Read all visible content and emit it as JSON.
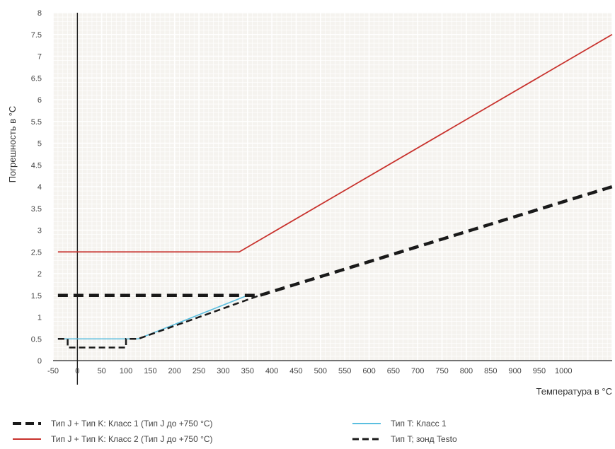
{
  "chart_data": {
    "type": "line",
    "xlabel": "Температура в °C",
    "ylabel": "Погрешность в °C",
    "xlim": [
      -50,
      1100
    ],
    "ylim": [
      0,
      8
    ],
    "x_ticks": [
      -50,
      0,
      50,
      100,
      150,
      200,
      250,
      300,
      350,
      400,
      450,
      500,
      550,
      600,
      650,
      700,
      750,
      800,
      850,
      900,
      950,
      1000
    ],
    "x_tick_labels": [
      "-50",
      "0",
      "50",
      "100",
      "150",
      "200",
      "250",
      "300",
      "350",
      "400",
      "450",
      "500",
      "550",
      "600",
      "650",
      "700",
      "750",
      "800",
      "850",
      "900",
      "950",
      "1000"
    ],
    "y_ticks": [
      0,
      0.5,
      1,
      1.5,
      2,
      2.5,
      3,
      3.5,
      4,
      4.5,
      5,
      5.5,
      6,
      6.5,
      7,
      7.5,
      8
    ],
    "y_tick_labels": [
      "0",
      "0.5",
      "1",
      "1.5",
      "2",
      "2.5",
      "3",
      "3.5",
      "4",
      "4.5",
      "5",
      "5.5",
      "6",
      "6.5",
      "7",
      "7.5",
      "8"
    ],
    "grid": true,
    "legend_position": "bottom",
    "series": [
      {
        "name": "Тип J + Тип K: Класс 1 (Тип J до +750 °C)",
        "color": "#1a1a1a",
        "style": "dashed-thick",
        "x": [
          -40,
          375,
          1100
        ],
        "y": [
          1.5,
          1.5,
          4.0
        ]
      },
      {
        "name": "Тип J + Тип K: Класс 2 (Тип J до +750 °C)",
        "color": "#c8322d",
        "style": "solid",
        "x": [
          -40,
          333,
          1100
        ],
        "y": [
          2.5,
          2.5,
          7.5
        ]
      },
      {
        "name": "Тип T: Класс 1",
        "color": "#5bbfe0",
        "style": "solid",
        "x": [
          -40,
          125,
          350
        ],
        "y": [
          0.5,
          0.5,
          1.5
        ]
      },
      {
        "name": "Тип T; зонд Testo",
        "color": "#1a1a1a",
        "style": "dashed",
        "x": [
          -40,
          -20,
          -20,
          100,
          100,
          125,
          375
        ],
        "y": [
          0.5,
          0.5,
          0.3,
          0.3,
          0.5,
          0.5,
          1.5
        ]
      }
    ]
  },
  "legend": {
    "items": [
      "Тип J + Тип K: Класс 1 (Тип J до +750 °C)",
      "Тип J + Тип K: Класс 2 (Тип J до +750 °C)",
      "Тип T: Класс 1",
      "Тип T; зонд Testo"
    ]
  },
  "colors": {
    "plot_background": "#f5f3ef",
    "grid": "#ffffff",
    "axis": "#222222"
  }
}
